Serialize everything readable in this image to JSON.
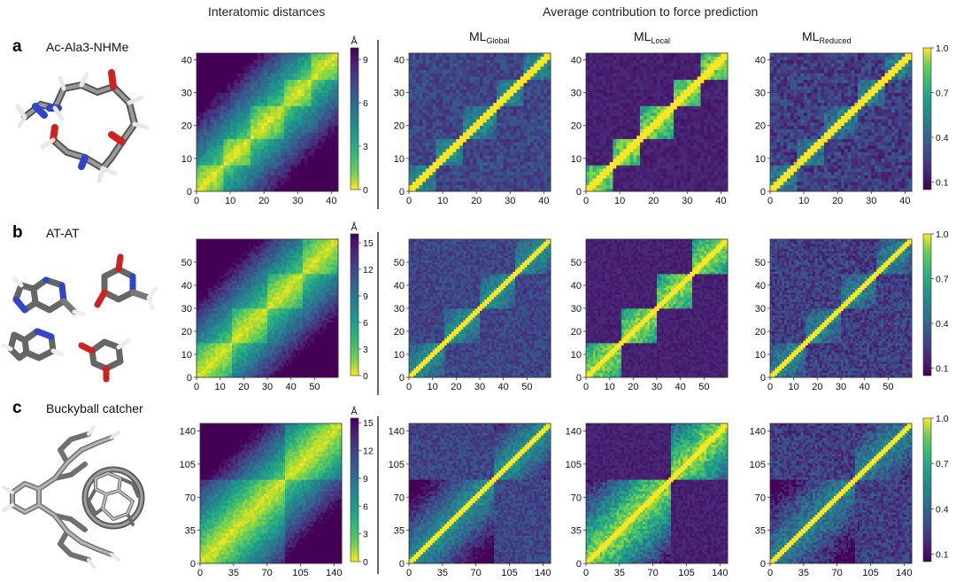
{
  "headers": {
    "distances": "Interatomic distances",
    "contribution": "Average contribution to force prediction",
    "models": [
      {
        "main": "ML",
        "sub": "Global"
      },
      {
        "main": "ML",
        "sub": "Local"
      },
      {
        "main": "ML",
        "sub": "Reduced"
      }
    ]
  },
  "rows": [
    {
      "panel": "a",
      "molecule": "Ac-Ala3-NHMe",
      "n_atoms": 42,
      "ticks": [
        "0",
        "10",
        "20",
        "30",
        "40"
      ],
      "tick_values": [
        0,
        10,
        20,
        30,
        40
      ],
      "dist_unit": "Å",
      "dist_ticks": [
        "9",
        "6",
        "3",
        "0"
      ],
      "dist_tick_values": [
        9,
        6,
        3,
        0
      ],
      "dist_max": 9.8,
      "contrib_ticks": [
        "1.0",
        "0.7",
        "0.4",
        "0.1"
      ],
      "contrib_tick_values": [
        1.0,
        0.7,
        0.4,
        0.1
      ],
      "blocks": [
        [
          0,
          8
        ],
        [
          8,
          16
        ],
        [
          16,
          26
        ],
        [
          26,
          34
        ],
        [
          34,
          42
        ]
      ]
    },
    {
      "panel": "b",
      "molecule": "AT-AT",
      "n_atoms": 60,
      "ticks": [
        "0",
        "10",
        "20",
        "30",
        "40",
        "50"
      ],
      "tick_values": [
        0,
        10,
        20,
        30,
        40,
        50
      ],
      "dist_unit": "Å",
      "dist_ticks": [
        "15",
        "12",
        "9",
        "6",
        "3",
        "0"
      ],
      "dist_tick_values": [
        15,
        12,
        9,
        6,
        3,
        0
      ],
      "dist_max": 16,
      "contrib_ticks": [
        "1.0",
        "0.7",
        "0.4",
        "0.1"
      ],
      "contrib_tick_values": [
        1.0,
        0.7,
        0.4,
        0.1
      ],
      "blocks": [
        [
          0,
          15
        ],
        [
          15,
          30
        ],
        [
          30,
          45
        ],
        [
          45,
          60
        ]
      ]
    },
    {
      "panel": "c",
      "molecule": "Buckyball catcher",
      "n_atoms": 148,
      "ticks": [
        "0",
        "35",
        "70",
        "105",
        "140"
      ],
      "tick_values": [
        0,
        35,
        70,
        105,
        140
      ],
      "dist_unit": "Å",
      "dist_ticks": [
        "15",
        "12",
        "9",
        "6",
        "3",
        "0"
      ],
      "dist_tick_values": [
        15,
        12,
        9,
        6,
        3,
        0
      ],
      "dist_max": 15.5,
      "contrib_ticks": [
        "1.0",
        "0.7",
        "0.4",
        "0.1"
      ],
      "contrib_tick_values": [
        1.0,
        0.7,
        0.4,
        0.1
      ],
      "blocks": [
        [
          0,
          88
        ],
        [
          88,
          148
        ]
      ]
    }
  ]
}
